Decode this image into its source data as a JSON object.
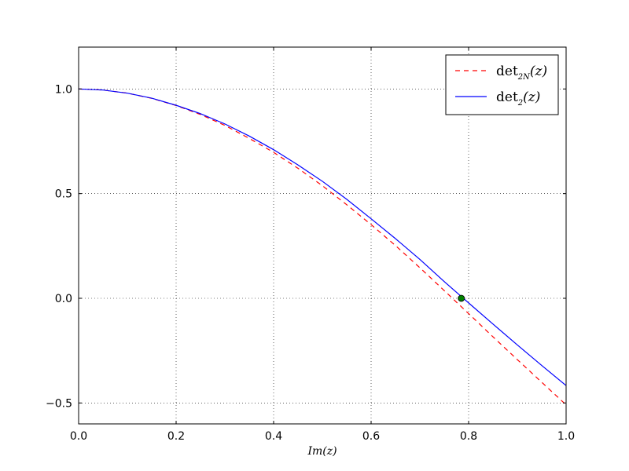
{
  "chart_data": {
    "type": "line",
    "title": "",
    "xlabel": "Im(z)",
    "ylabel": "",
    "xlim": [
      0.0,
      1.0
    ],
    "ylim": [
      -0.6,
      1.2
    ],
    "grid": true,
    "legend_position": "top-right",
    "x_ticks": [
      0.0,
      0.2,
      0.4,
      0.6,
      0.8,
      1.0
    ],
    "x_tick_labels": [
      "0.0",
      "0.2",
      "0.4",
      "0.6",
      "0.8",
      "1.0"
    ],
    "y_ticks": [
      -0.5,
      0.0,
      0.5,
      1.0
    ],
    "y_tick_labels": [
      "−0.5",
      "0.0",
      "0.5",
      "1.0"
    ],
    "series": [
      {
        "name": "det_{2N}(z)",
        "legend_label": {
          "main": "det",
          "sub": "2N",
          "arg": "(z)"
        },
        "color": "#ff0000",
        "style": "dashed",
        "x": [
          0.0,
          0.05,
          0.1,
          0.15,
          0.2,
          0.25,
          0.3,
          0.35,
          0.4,
          0.45,
          0.5,
          0.55,
          0.6,
          0.65,
          0.7,
          0.75,
          0.8,
          0.85,
          0.9,
          0.95,
          1.0
        ],
        "y": [
          1.0,
          0.995,
          0.98,
          0.955,
          0.921,
          0.878,
          0.826,
          0.764,
          0.697,
          0.621,
          0.538,
          0.447,
          0.352,
          0.252,
          0.146,
          0.037,
          -0.073,
          -0.184,
          -0.293,
          -0.401,
          -0.509
        ]
      },
      {
        "name": "det_2(z)",
        "legend_label": {
          "main": "det",
          "sub": "2",
          "arg": "(z)"
        },
        "color": "#0000ff",
        "style": "solid",
        "x": [
          0.0,
          0.05,
          0.1,
          0.15,
          0.2,
          0.25,
          0.3,
          0.35,
          0.4,
          0.45,
          0.5,
          0.55,
          0.6,
          0.65,
          0.7,
          0.75,
          0.8,
          0.85,
          0.9,
          0.95,
          1.0
        ],
        "y": [
          1.0,
          0.995,
          0.98,
          0.956,
          0.922,
          0.882,
          0.833,
          0.775,
          0.71,
          0.637,
          0.559,
          0.473,
          0.38,
          0.285,
          0.186,
          0.08,
          -0.022,
          -0.123,
          -0.223,
          -0.321,
          -0.417
        ]
      }
    ],
    "marker": {
      "x": 0.785,
      "y": 0.0,
      "color": "#008000"
    }
  }
}
